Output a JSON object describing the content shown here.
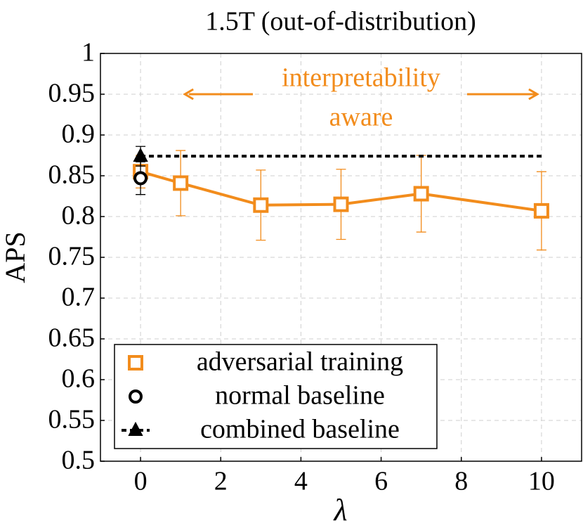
{
  "chart_data": {
    "type": "line",
    "title": "1.5T (out-of-distribution)",
    "xlabel": "λ",
    "ylabel": "APS",
    "xlim": [
      -1,
      11
    ],
    "xticks": [
      0,
      2,
      4,
      6,
      8,
      10
    ],
    "ylim": [
      0.5,
      1
    ],
    "yticks": [
      0.5,
      0.55,
      0.6,
      0.65,
      0.7,
      0.75,
      0.8,
      0.85,
      0.9,
      0.95,
      1
    ],
    "grid": true,
    "legend": "lower left",
    "annotation": [
      "interpretability",
      "aware"
    ],
    "series": [
      {
        "name": "adversarial training",
        "color": "#f28c1c",
        "marker": "square",
        "line": "solid",
        "x": [
          0,
          1,
          3,
          5,
          7,
          10
        ],
        "values": [
          0.855,
          0.841,
          0.814,
          0.815,
          0.828,
          0.807
        ],
        "errors": [
          0.02,
          0.04,
          0.043,
          0.043,
          0.047,
          0.048
        ]
      },
      {
        "name": "normal baseline",
        "color": "#000000",
        "marker": "circle",
        "line": "none",
        "x": [
          0
        ],
        "values": [
          0.847
        ],
        "errors": [
          0.02
        ]
      },
      {
        "name": "combined baseline",
        "color": "#000000",
        "marker": "triangle",
        "line": "dashed",
        "x": [
          0
        ],
        "values": [
          0.874
        ],
        "errors": [
          0.012
        ]
      }
    ]
  }
}
